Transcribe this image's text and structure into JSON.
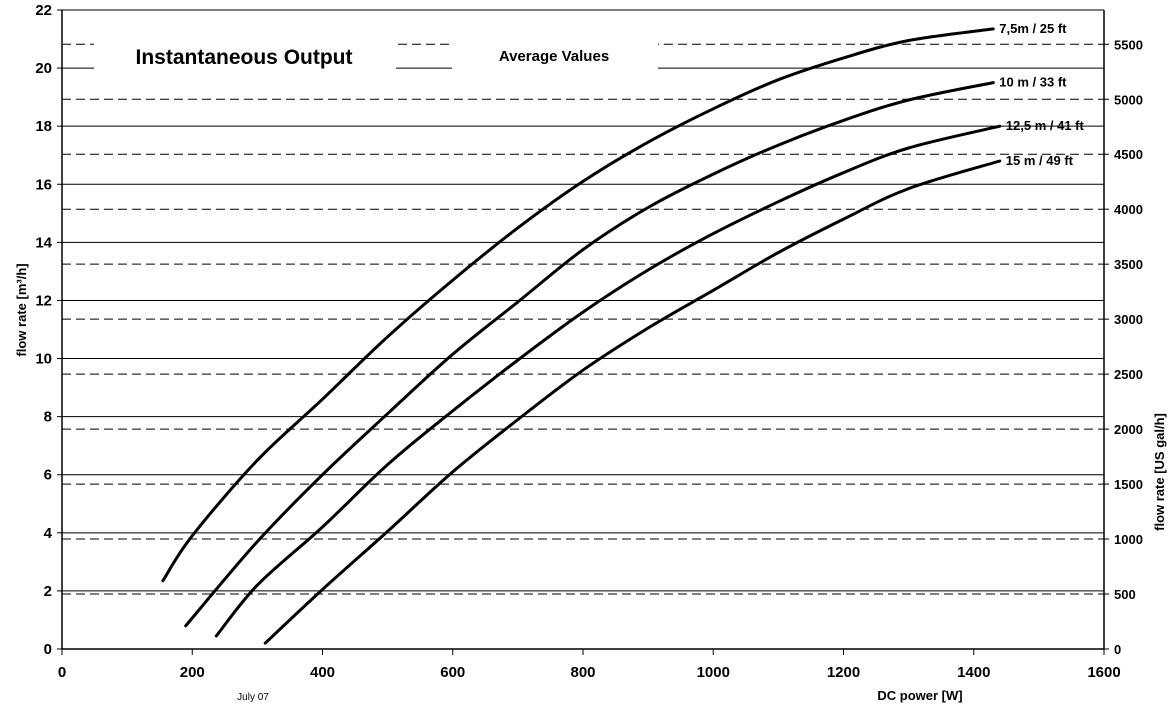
{
  "chart_data": {
    "type": "line",
    "title": "Instantaneous Output",
    "subtitle": "Average Values",
    "xlabel": "DC power [W]",
    "ylabel": "flow rate [m³/h]",
    "ylabel_right": "flow rate [US gal/h]",
    "footnote": "July 07",
    "xlim": [
      0,
      1600
    ],
    "ylim": [
      0,
      22
    ],
    "x_ticks": [
      "0",
      "200",
      "400",
      "600",
      "800",
      "1000",
      "1200",
      "1400",
      "1600"
    ],
    "y_ticks": [
      "0",
      "2",
      "4",
      "6",
      "8",
      "10",
      "12",
      "14",
      "16",
      "18",
      "20",
      "22"
    ],
    "y2_ticks": [
      "0",
      "500",
      "1000",
      "1500",
      "2000",
      "2500",
      "3000",
      "3500",
      "4000",
      "4500",
      "5000",
      "5500"
    ],
    "y2_unit_per_y": 264.17,
    "grid": {
      "solid_horizontal": true,
      "dashed_secondary": true
    },
    "series": [
      {
        "name": "7,5m / 25 ft",
        "points": [
          [
            155,
            2.35
          ],
          [
            200,
            3.9
          ],
          [
            300,
            6.5
          ],
          [
            400,
            8.6
          ],
          [
            500,
            10.75
          ],
          [
            600,
            12.7
          ],
          [
            700,
            14.5
          ],
          [
            800,
            16.1
          ],
          [
            900,
            17.45
          ],
          [
            1000,
            18.6
          ],
          [
            1100,
            19.6
          ],
          [
            1200,
            20.35
          ],
          [
            1300,
            20.95
          ],
          [
            1430,
            21.35
          ]
        ]
      },
      {
        "name": "10 m / 33 ft",
        "points": [
          [
            190,
            0.8
          ],
          [
            300,
            3.7
          ],
          [
            400,
            6.0
          ],
          [
            500,
            8.1
          ],
          [
            600,
            10.15
          ],
          [
            700,
            11.95
          ],
          [
            800,
            13.75
          ],
          [
            900,
            15.2
          ],
          [
            1000,
            16.35
          ],
          [
            1100,
            17.35
          ],
          [
            1200,
            18.2
          ],
          [
            1300,
            18.9
          ],
          [
            1430,
            19.5
          ]
        ]
      },
      {
        "name": "12,5 m / 41 ft",
        "points": [
          [
            237,
            0.45
          ],
          [
            300,
            2.2
          ],
          [
            400,
            4.2
          ],
          [
            500,
            6.35
          ],
          [
            600,
            8.2
          ],
          [
            700,
            9.95
          ],
          [
            800,
            11.6
          ],
          [
            900,
            13.05
          ],
          [
            1000,
            14.3
          ],
          [
            1100,
            15.4
          ],
          [
            1200,
            16.4
          ],
          [
            1300,
            17.25
          ],
          [
            1440,
            18.0
          ]
        ]
      },
      {
        "name": "15 m / 49 ft",
        "points": [
          [
            312,
            0.2
          ],
          [
            400,
            2.05
          ],
          [
            500,
            4.05
          ],
          [
            600,
            6.1
          ],
          [
            700,
            7.9
          ],
          [
            800,
            9.6
          ],
          [
            900,
            11.05
          ],
          [
            1000,
            12.35
          ],
          [
            1100,
            13.65
          ],
          [
            1200,
            14.8
          ],
          [
            1300,
            15.85
          ],
          [
            1440,
            16.8
          ]
        ]
      }
    ]
  }
}
